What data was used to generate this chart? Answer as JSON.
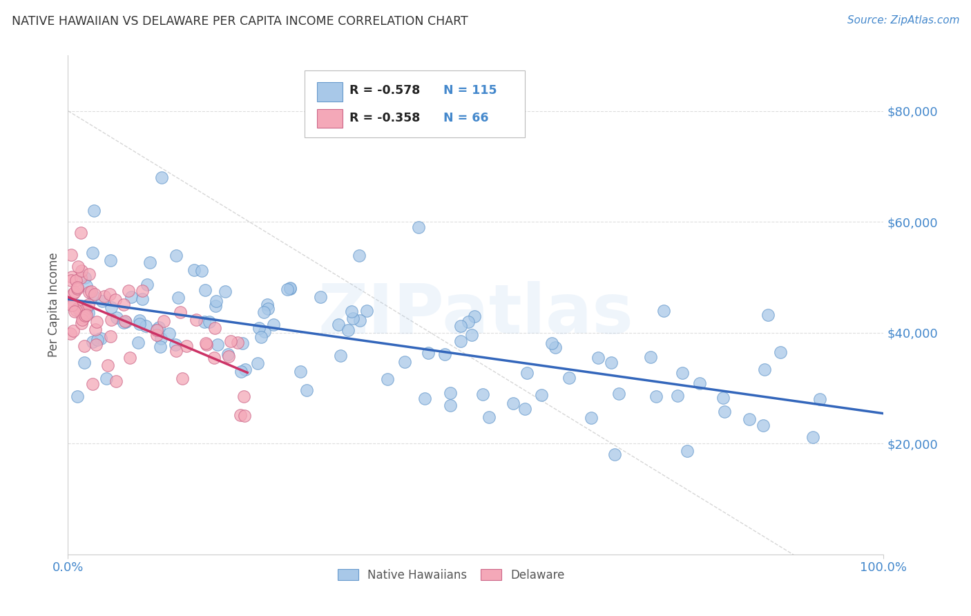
{
  "title": "NATIVE HAWAIIAN VS DELAWARE PER CAPITA INCOME CORRELATION CHART",
  "source": "Source: ZipAtlas.com",
  "ylabel": "Per Capita Income",
  "watermark": "ZIPatlas",
  "blue_R": -0.578,
  "blue_N": 115,
  "pink_R": -0.358,
  "pink_N": 66,
  "blue_color": "#a8c8e8",
  "pink_color": "#f4a8b8",
  "blue_edge_color": "#6699cc",
  "pink_edge_color": "#cc6688",
  "blue_line_color": "#3366bb",
  "pink_line_color": "#cc3366",
  "gray_line_color": "#cccccc",
  "title_color": "#333333",
  "source_color": "#4488cc",
  "axis_label_color": "#555555",
  "tick_label_color": "#4488cc",
  "background_color": "#ffffff",
  "ylim": [
    0,
    90000
  ],
  "xlim": [
    0.0,
    1.0
  ],
  "yticks": [
    20000,
    40000,
    60000,
    80000
  ],
  "ytick_labels": [
    "$20,000",
    "$40,000",
    "$60,000",
    "$80,000"
  ],
  "xtick_labels": [
    "0.0%",
    "100.0%"
  ],
  "grid_color": "#dddddd",
  "blue_seed": 42,
  "pink_seed": 99
}
